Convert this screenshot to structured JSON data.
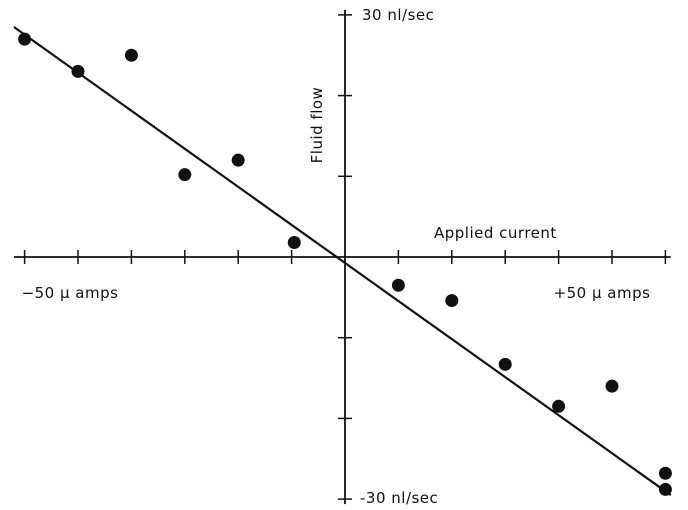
{
  "chart_data": {
    "type": "scatter",
    "xlabel": "Applied current",
    "ylabel": "Fluid flow",
    "xlim": [
      -62,
      61
    ],
    "ylim": [
      -30,
      30
    ],
    "x_tick_step": 10,
    "y_tick_step": 10,
    "x_end_labels": {
      "neg": {
        "text": "−50 μ amps",
        "at": -50
      },
      "pos": {
        "text": "+50 μ amps",
        "at": 50
      }
    },
    "y_end_labels": {
      "top": {
        "text": "30 nl/sec",
        "at": 30
      },
      "bottom": {
        "text": "-30 nl/sec",
        "at": -30
      }
    },
    "series": [
      {
        "points": [
          {
            "x": -60,
            "y": 27
          },
          {
            "x": -50,
            "y": 23
          },
          {
            "x": -40,
            "y": 25
          },
          {
            "x": -30,
            "y": 10.2
          },
          {
            "x": -20,
            "y": 12
          },
          {
            "x": -9.5,
            "y": 1.8
          },
          {
            "x": 10,
            "y": -3.5
          },
          {
            "x": 20,
            "y": -5.4
          },
          {
            "x": 30,
            "y": -13.3
          },
          {
            "x": 40,
            "y": -18.5
          },
          {
            "x": 50,
            "y": -16
          },
          {
            "x": 60,
            "y": -26.8
          },
          {
            "x": 60,
            "y": -28.8
          }
        ]
      }
    ],
    "fit_line": {
      "x1": -62,
      "y1": 28.5,
      "x2": 61,
      "y2": -29.5
    },
    "grid": false
  }
}
